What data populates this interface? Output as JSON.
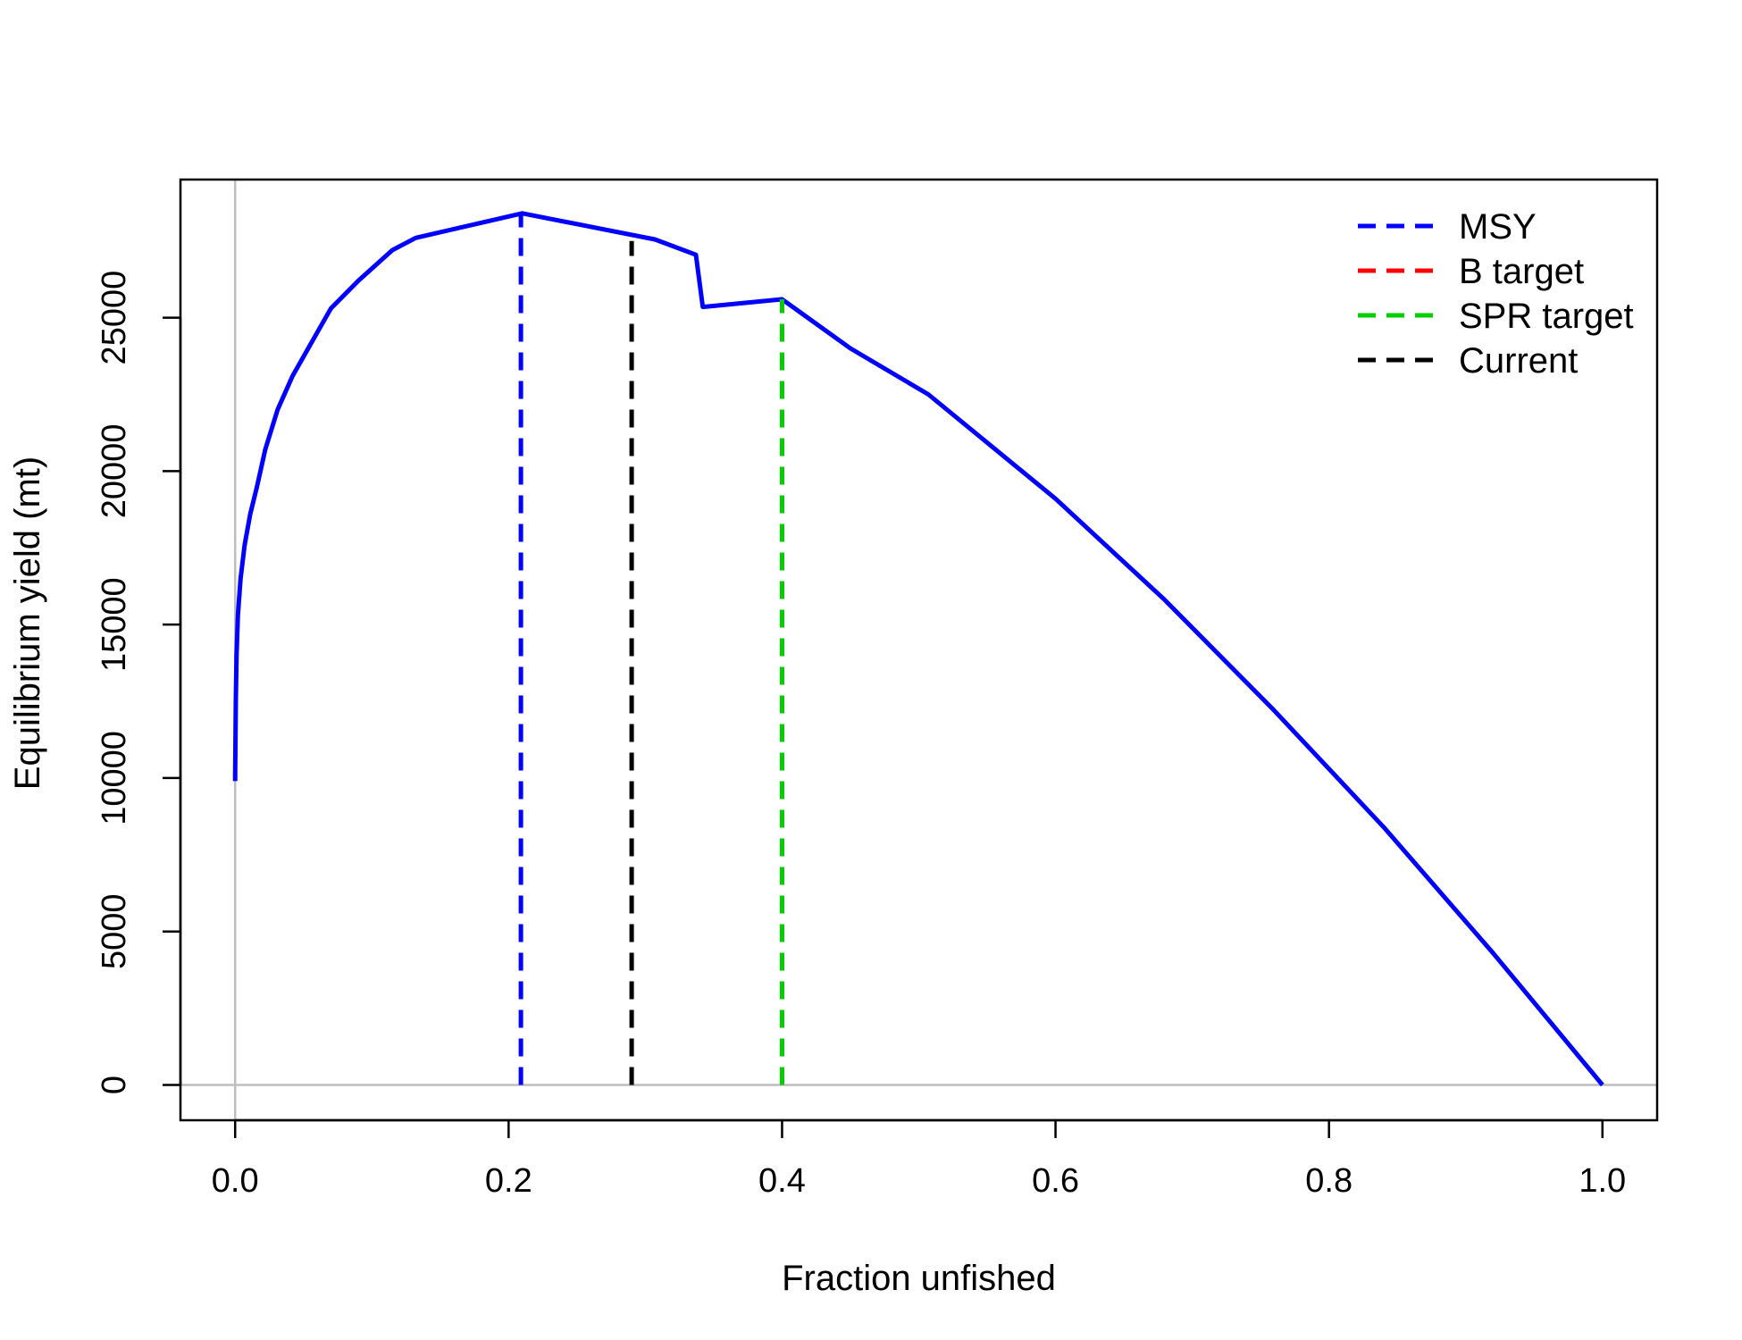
{
  "chart_data": {
    "type": "line",
    "xlabel": "Fraction unfished",
    "ylabel": "Equilibrium yield (mt)",
    "xlim": [
      -0.04,
      1.04
    ],
    "ylim": [
      -1150,
      29500
    ],
    "x_ticks": [
      0.0,
      0.2,
      0.4,
      0.6,
      0.8,
      1.0
    ],
    "x_tick_labels": [
      "0.0",
      "0.2",
      "0.4",
      "0.6",
      "0.8",
      "1.0"
    ],
    "y_ticks": [
      0,
      5000,
      10000,
      15000,
      20000,
      25000
    ],
    "y_tick_labels": [
      "0",
      "5000",
      "10000",
      "15000",
      "20000",
      "25000"
    ],
    "grid": false,
    "reference_lines": {
      "x": 0,
      "y": 0,
      "color": "#bebebe"
    },
    "legend_position": "top-right",
    "series": [
      {
        "color": "#0000ff",
        "style": "solid",
        "x": [
          0.0,
          0.0005,
          0.001,
          0.002,
          0.004,
          0.007,
          0.011,
          0.016,
          0.022,
          0.031,
          0.042,
          0.056,
          0.07,
          0.09,
          0.115,
          0.132,
          0.21,
          0.307,
          0.337,
          0.342,
          0.4,
          0.45,
          0.507,
          0.6,
          0.68,
          0.76,
          0.84,
          0.92,
          1.0
        ],
        "y": [
          9900,
          12600,
          14000,
          15300,
          16500,
          17600,
          18600,
          19500,
          20700,
          22000,
          23100,
          24200,
          25300,
          26200,
          27200,
          27600,
          28400,
          27550,
          27050,
          25350,
          25600,
          24000,
          22500,
          19100,
          15800,
          12200,
          8400,
          4300,
          0
        ]
      }
    ],
    "vertical_markers": [
      {
        "name": "MSY",
        "x": 0.209,
        "y_top": 28400,
        "color": "#0000ff",
        "style": "dashed",
        "in_legend": true
      },
      {
        "name": "B target",
        "x": 0.4,
        "y_top": 25600,
        "color": "#ff0000",
        "style": "dashed",
        "in_legend": true
      },
      {
        "name": "SPR target",
        "x": 0.4,
        "y_top": 25600,
        "color": "#00cd00",
        "style": "dashed",
        "in_legend": true
      },
      {
        "name": "Current",
        "x": 0.29,
        "y_top": 27500,
        "color": "#000000",
        "style": "dashed",
        "in_legend": true
      }
    ]
  }
}
